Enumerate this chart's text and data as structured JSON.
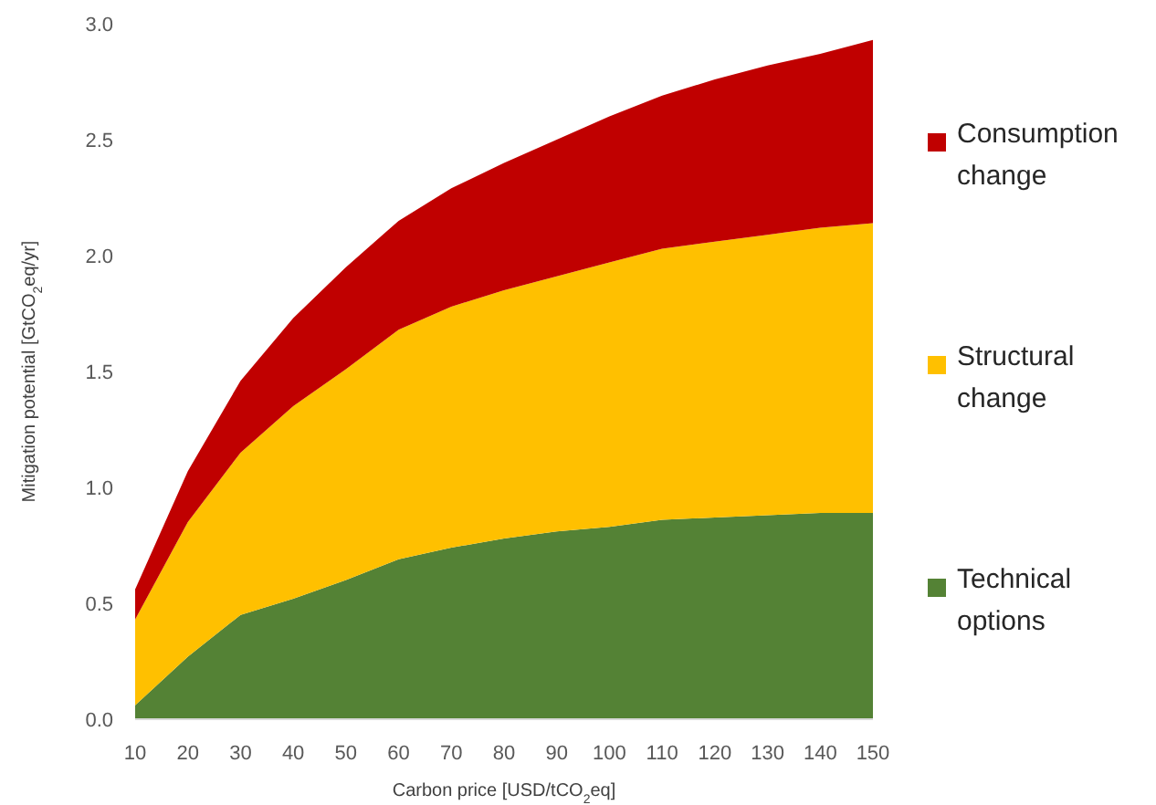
{
  "chart_data": {
    "type": "area",
    "stacked": true,
    "xlabel": "Carbon price [USD/tCO$_{2}$eq]",
    "ylabel": "Mitigation potential [GtCO$_{2}$eq/yr]",
    "x": [
      10,
      20,
      30,
      40,
      50,
      60,
      70,
      80,
      90,
      100,
      110,
      120,
      130,
      140,
      150
    ],
    "xlim": [
      10,
      150
    ],
    "xticks": [
      10,
      20,
      30,
      40,
      50,
      60,
      70,
      80,
      90,
      100,
      110,
      120,
      130,
      140,
      150
    ],
    "ylim": [
      0,
      3
    ],
    "yticks": [
      {
        "value": 0,
        "label": "0.0"
      },
      {
        "value": 0.5,
        "label": "0.5"
      },
      {
        "value": 1,
        "label": "1.0"
      },
      {
        "value": 1.5,
        "label": "1.5"
      },
      {
        "value": 2,
        "label": "2.0"
      },
      {
        "value": 2.5,
        "label": "2.5"
      },
      {
        "value": 3,
        "label": "3.0"
      }
    ],
    "grid": false,
    "legend": "right",
    "series": [
      {
        "name": "Technical options",
        "color": "#548235",
        "values": [
          0.06,
          0.27,
          0.45,
          0.52,
          0.6,
          0.69,
          0.74,
          0.78,
          0.81,
          0.83,
          0.86,
          0.87,
          0.88,
          0.89,
          0.89
        ]
      },
      {
        "name": "Structural change",
        "color": "#ffc000",
        "values": [
          0.37,
          0.58,
          0.7,
          0.83,
          0.91,
          0.99,
          1.04,
          1.07,
          1.1,
          1.14,
          1.17,
          1.19,
          1.21,
          1.23,
          1.25
        ]
      },
      {
        "name": "Consumption change",
        "color": "#c00000",
        "values": [
          0.13,
          0.22,
          0.31,
          0.38,
          0.44,
          0.47,
          0.51,
          0.55,
          0.59,
          0.63,
          0.66,
          0.7,
          0.73,
          0.75,
          0.79
        ]
      }
    ]
  }
}
